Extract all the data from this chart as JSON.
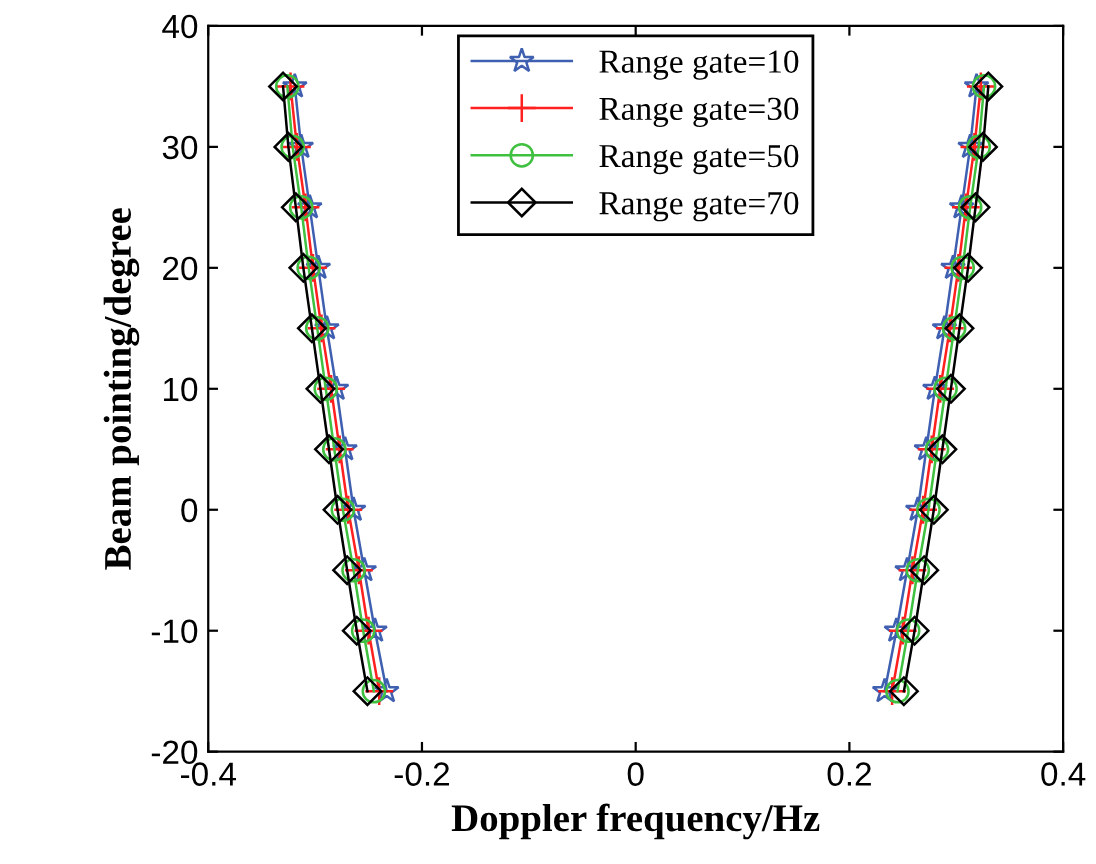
{
  "chart_data": {
    "type": "line",
    "xlabel": "Doppler frequency/Hz",
    "ylabel": "Beam pointing/degree",
    "xlim": [
      -0.4,
      0.4
    ],
    "ylim": [
      -20,
      40
    ],
    "xticks": [
      -0.4,
      -0.2,
      0,
      0.2,
      0.4
    ],
    "yticks": [
      -20,
      -10,
      0,
      10,
      20,
      30,
      40
    ],
    "grid": false,
    "legend": "top",
    "line_style": "solid",
    "series": [
      {
        "name": "Range gate=10",
        "color": "#3f5fb0",
        "marker": "star",
        "x": [
          -0.319,
          -0.313,
          -0.305,
          -0.297,
          -0.289,
          -0.28,
          -0.272,
          -0.264,
          -0.254,
          -0.244,
          -0.233,
          null,
          0.233,
          0.244,
          0.254,
          0.264,
          0.272,
          0.28,
          0.289,
          0.297,
          0.305,
          0.313,
          0.319
        ],
        "values": [
          35,
          30,
          25,
          20,
          15,
          10,
          5,
          0,
          -5,
          -10,
          -15,
          null,
          -15,
          -10,
          -5,
          0,
          5,
          10,
          15,
          20,
          25,
          30,
          35
        ]
      },
      {
        "name": "Range gate=30",
        "color": "#ff2020",
        "marker": "cross",
        "x": [
          -0.323,
          -0.317,
          -0.309,
          -0.302,
          -0.294,
          -0.285,
          -0.277,
          -0.269,
          -0.259,
          -0.25,
          -0.24,
          null,
          0.24,
          0.25,
          0.259,
          0.269,
          0.277,
          0.285,
          0.294,
          0.302,
          0.309,
          0.317,
          0.323
        ],
        "values": [
          35,
          30,
          25,
          20,
          15,
          10,
          5,
          0,
          -5,
          -10,
          -15,
          null,
          -15,
          -10,
          -5,
          0,
          5,
          10,
          15,
          20,
          25,
          30,
          35
        ]
      },
      {
        "name": "Range gate=50",
        "color": "#40c040",
        "marker": "circle",
        "x": [
          -0.326,
          -0.321,
          -0.313,
          -0.306,
          -0.298,
          -0.29,
          -0.282,
          -0.274,
          -0.264,
          -0.255,
          -0.245,
          null,
          0.245,
          0.255,
          0.264,
          0.274,
          0.282,
          0.29,
          0.298,
          0.306,
          0.313,
          0.321,
          0.326
        ],
        "values": [
          35,
          30,
          25,
          20,
          15,
          10,
          5,
          0,
          -5,
          -10,
          -15,
          null,
          -15,
          -10,
          -5,
          0,
          5,
          10,
          15,
          20,
          25,
          30,
          35
        ]
      },
      {
        "name": "Range gate=70",
        "color": "#000000",
        "marker": "diamond",
        "x": [
          -0.33,
          -0.325,
          -0.318,
          -0.311,
          -0.303,
          -0.295,
          -0.287,
          -0.279,
          -0.27,
          -0.261,
          -0.251,
          null,
          0.251,
          0.261,
          0.27,
          0.279,
          0.287,
          0.295,
          0.303,
          0.311,
          0.318,
          0.325,
          0.33
        ],
        "values": [
          35,
          30,
          25,
          20,
          15,
          10,
          5,
          0,
          -5,
          -10,
          -15,
          null,
          -15,
          -10,
          -5,
          0,
          5,
          10,
          15,
          20,
          25,
          30,
          35
        ]
      }
    ]
  }
}
